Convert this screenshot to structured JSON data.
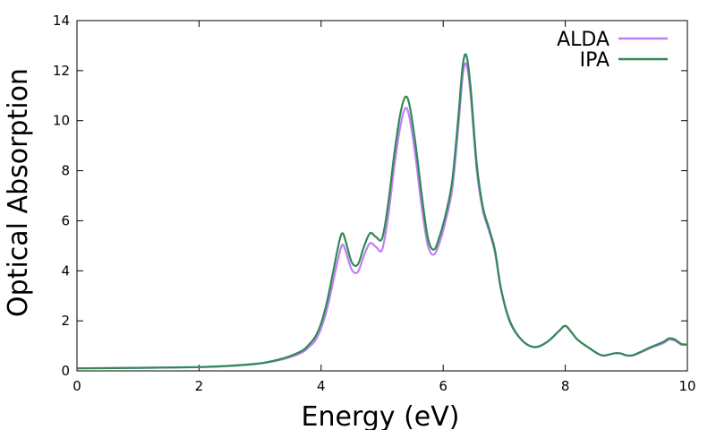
{
  "chart_data": {
    "type": "line",
    "title": "",
    "xlabel": "Energy (eV)",
    "ylabel": "Optical Absorption",
    "xlim": [
      0,
      10
    ],
    "ylim": [
      0,
      14
    ],
    "x_ticks": [
      0,
      2,
      4,
      6,
      8,
      10
    ],
    "y_ticks": [
      0,
      2,
      4,
      6,
      8,
      10,
      12,
      14
    ],
    "grid": false,
    "legend_position": "top-right",
    "series": [
      {
        "name": "ALDA",
        "color": "#c080f0",
        "x": [
          0,
          1,
          2,
          2.5,
          3,
          3.3,
          3.5,
          3.7,
          3.8,
          3.9,
          4.0,
          4.1,
          4.2,
          4.3,
          4.35,
          4.4,
          4.5,
          4.6,
          4.7,
          4.8,
          4.9,
          5.0,
          5.1,
          5.2,
          5.3,
          5.38,
          5.45,
          5.55,
          5.65,
          5.75,
          5.85,
          5.95,
          6.05,
          6.15,
          6.25,
          6.32,
          6.38,
          6.45,
          6.55,
          6.65,
          6.75,
          6.85,
          6.95,
          7.1,
          7.3,
          7.5,
          7.7,
          7.9,
          8.0,
          8.1,
          8.2,
          8.4,
          8.6,
          8.8,
          8.9,
          9.0,
          9.1,
          9.2,
          9.4,
          9.6,
          9.7,
          9.8,
          9.9,
          10.0
        ],
        "y": [
          0.1,
          0.12,
          0.15,
          0.2,
          0.3,
          0.42,
          0.55,
          0.75,
          0.95,
          1.2,
          1.7,
          2.5,
          3.6,
          4.7,
          5.05,
          4.8,
          4.05,
          3.95,
          4.6,
          5.1,
          4.95,
          4.85,
          6.2,
          8.2,
          9.8,
          10.5,
          10.1,
          8.5,
          6.5,
          5.0,
          4.65,
          5.2,
          6.1,
          7.3,
          9.8,
          11.8,
          12.25,
          11.0,
          8.0,
          6.4,
          5.6,
          4.7,
          3.2,
          1.9,
          1.2,
          0.95,
          1.15,
          1.6,
          1.8,
          1.55,
          1.25,
          0.9,
          0.62,
          0.7,
          0.7,
          0.62,
          0.62,
          0.7,
          0.92,
          1.1,
          1.25,
          1.2,
          1.05,
          1.05
        ]
      },
      {
        "name": "IPA",
        "color": "#2e8a57",
        "x": [
          0,
          1,
          2,
          2.5,
          3,
          3.3,
          3.5,
          3.7,
          3.8,
          3.9,
          4.0,
          4.1,
          4.2,
          4.3,
          4.35,
          4.4,
          4.5,
          4.6,
          4.7,
          4.8,
          4.9,
          5.0,
          5.1,
          5.2,
          5.3,
          5.38,
          5.45,
          5.55,
          5.65,
          5.75,
          5.85,
          5.95,
          6.05,
          6.15,
          6.25,
          6.32,
          6.38,
          6.45,
          6.55,
          6.65,
          6.75,
          6.85,
          6.95,
          7.1,
          7.3,
          7.5,
          7.7,
          7.9,
          8.0,
          8.1,
          8.2,
          8.4,
          8.6,
          8.8,
          8.9,
          9.0,
          9.1,
          9.2,
          9.4,
          9.6,
          9.7,
          9.8,
          9.9,
          10.0
        ],
        "y": [
          0.1,
          0.12,
          0.15,
          0.2,
          0.3,
          0.45,
          0.6,
          0.82,
          1.05,
          1.35,
          1.9,
          2.8,
          4.0,
          5.2,
          5.5,
          5.2,
          4.35,
          4.25,
          4.95,
          5.5,
          5.35,
          5.3,
          6.7,
          8.7,
          10.3,
          10.95,
          10.6,
          9.0,
          7.0,
          5.3,
          4.85,
          5.45,
          6.35,
          7.65,
          10.2,
          12.2,
          12.6,
          11.3,
          8.25,
          6.55,
          5.7,
          4.8,
          3.25,
          1.95,
          1.2,
          0.95,
          1.15,
          1.6,
          1.8,
          1.55,
          1.25,
          0.9,
          0.62,
          0.7,
          0.7,
          0.62,
          0.62,
          0.72,
          0.95,
          1.15,
          1.3,
          1.25,
          1.08,
          1.05
        ]
      }
    ]
  }
}
